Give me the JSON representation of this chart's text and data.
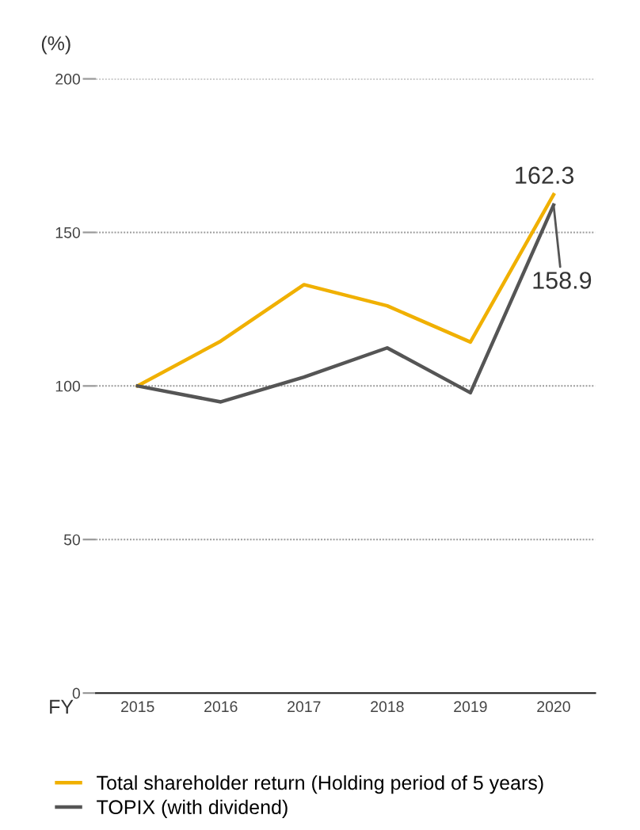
{
  "chart_data": {
    "type": "line",
    "ylabel": "(%)",
    "xlabel": "FY",
    "categories": [
      "2015",
      "2016",
      "2017",
      "2018",
      "2019",
      "2020"
    ],
    "series": [
      {
        "name": "Total shareholder return (Holding period of 5 years)",
        "color": "#f0b000",
        "values": [
          100,
          114.6,
          133,
          126.1,
          114.3,
          162.3
        ]
      },
      {
        "name": "TOPIX (with dividend)",
        "color": "#555555",
        "values": [
          100,
          94.8,
          102.9,
          112.4,
          97.8,
          158.9
        ]
      }
    ],
    "annotations": [
      {
        "text": "162.3",
        "x": "2020",
        "y": 162.3
      },
      {
        "text": "158.9",
        "x": "2020",
        "y": 158.9
      }
    ],
    "ylim": [
      0,
      200
    ],
    "yticks": [
      0,
      50,
      100,
      150,
      200
    ],
    "grid": "y",
    "legend": "bottom",
    "marker": "none",
    "line_style": "solid"
  }
}
